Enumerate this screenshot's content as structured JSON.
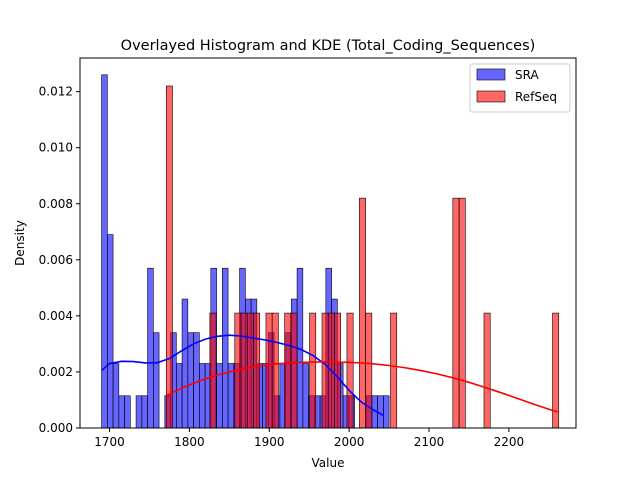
{
  "chart_data": {
    "type": "bar",
    "title": "Overlayed Histogram and KDE (Total_Coding_Sequences)",
    "xlabel": "Value",
    "ylabel": "Density",
    "xlim": [
      1663,
      2284
    ],
    "ylim": [
      0,
      0.0132
    ],
    "xticks": [
      1700,
      1800,
      1900,
      2000,
      2100,
      2200
    ],
    "yticks": [
      0,
      0.002,
      0.004,
      0.006,
      0.008,
      0.01,
      0.012
    ],
    "ytick_labels": [
      "0.000",
      "0.002",
      "0.004",
      "0.006",
      "0.008",
      "0.010",
      "0.012"
    ],
    "legend_position": "top-right",
    "series": [
      {
        "name": "SRA",
        "color": "#0000ff",
        "opacity": 0.6,
        "bin_start": 1690,
        "bin_width": 7.2,
        "values": [
          0.0126,
          0.0069,
          0.0023,
          0.00115,
          0.00115,
          0,
          0.00115,
          0.00115,
          0.0057,
          0.0034,
          0,
          0.00115,
          0.0034,
          0.0023,
          0.0046,
          0.0034,
          0.0034,
          0.0023,
          0.0023,
          0.0057,
          0.0023,
          0.0057,
          0.0023,
          0.0023,
          0.0057,
          0.0046,
          0.0046,
          0.0023,
          0.0023,
          0.0034,
          0.00115,
          0.0023,
          0.0034,
          0.0046,
          0.0057,
          0.0023,
          0.00115,
          0.00115,
          0.00115,
          0.0057,
          0.0046,
          0.0023,
          0.00115,
          0.00115,
          0,
          0,
          0.00115,
          0.00115,
          0.00115,
          0.00115
        ]
      },
      {
        "name": "RefSeq",
        "color": "#ff0000",
        "opacity": 0.6,
        "bin_start": 1771,
        "bin_width": 7.8,
        "values": [
          0.0122,
          0,
          0,
          0,
          0,
          0,
          0,
          0.0041,
          0,
          0,
          0,
          0.0041,
          0.0041,
          0.0041,
          0.0041,
          0,
          0.0041,
          0.0041,
          0,
          0.0041,
          0.0041,
          0,
          0,
          0.0041,
          0,
          0.0041,
          0.0041,
          0.0041,
          0,
          0.0041,
          0,
          0.0082,
          0.0041,
          0,
          0,
          0,
          0.0041,
          0,
          0,
          0,
          0,
          0,
          0,
          0,
          0,
          0,
          0.0082,
          0.0082,
          0,
          0,
          0,
          0.0041,
          0,
          0,
          0,
          0,
          0,
          0,
          0,
          0,
          0,
          0,
          0.0041
        ]
      }
    ],
    "kde": [
      {
        "name": "SRA",
        "color": "#0000ff",
        "points": [
          [
            1690,
            0.00205
          ],
          [
            1700,
            0.0023
          ],
          [
            1715,
            0.00238
          ],
          [
            1730,
            0.00237
          ],
          [
            1745,
            0.00232
          ],
          [
            1760,
            0.00233
          ],
          [
            1775,
            0.00248
          ],
          [
            1790,
            0.00275
          ],
          [
            1805,
            0.003
          ],
          [
            1820,
            0.00317
          ],
          [
            1835,
            0.00327
          ],
          [
            1850,
            0.00331
          ],
          [
            1865,
            0.00328
          ],
          [
            1880,
            0.00321
          ],
          [
            1895,
            0.00314
          ],
          [
            1910,
            0.00305
          ],
          [
            1925,
            0.00294
          ],
          [
            1940,
            0.0028
          ],
          [
            1955,
            0.00258
          ],
          [
            1970,
            0.00227
          ],
          [
            1985,
            0.00183
          ],
          [
            2000,
            0.00134
          ],
          [
            2015,
            0.00093
          ],
          [
            2030,
            0.00065
          ],
          [
            2043,
            0.00045
          ]
        ]
      },
      {
        "name": "RefSeq",
        "color": "#ff0000",
        "points": [
          [
            1771,
            0.00115
          ],
          [
            1790,
            0.00142
          ],
          [
            1810,
            0.00165
          ],
          [
            1830,
            0.00185
          ],
          [
            1850,
            0.002
          ],
          [
            1870,
            0.00213
          ],
          [
            1890,
            0.00222
          ],
          [
            1910,
            0.00229
          ],
          [
            1930,
            0.00233
          ],
          [
            1950,
            0.00235
          ],
          [
            1970,
            0.00236
          ],
          [
            1990,
            0.00235
          ],
          [
            2010,
            0.00233
          ],
          [
            2030,
            0.00229
          ],
          [
            2050,
            0.00223
          ],
          [
            2070,
            0.00215
          ],
          [
            2090,
            0.00205
          ],
          [
            2110,
            0.00193
          ],
          [
            2130,
            0.00179
          ],
          [
            2150,
            0.00163
          ],
          [
            2170,
            0.00145
          ],
          [
            2190,
            0.00126
          ],
          [
            2210,
            0.00106
          ],
          [
            2230,
            0.00086
          ],
          [
            2250,
            0.00067
          ],
          [
            2261,
            0.00057
          ]
        ]
      }
    ]
  }
}
